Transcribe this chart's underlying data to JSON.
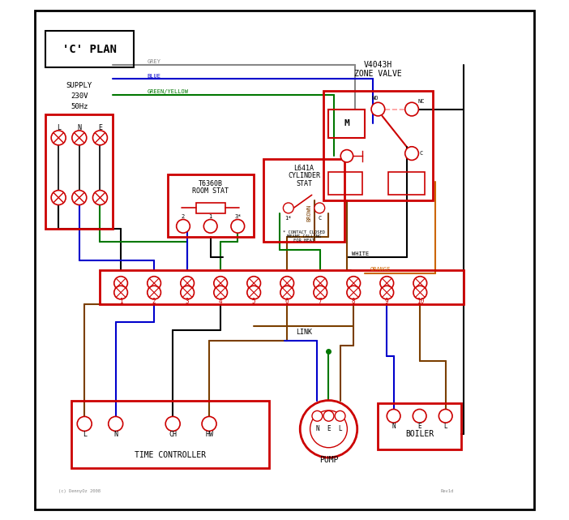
{
  "title": "'C' PLAN",
  "bg_color": "#ffffff",
  "border_color": "#000000",
  "red": "#cc0000",
  "blue": "#0000cc",
  "green": "#007700",
  "brown": "#7B3F00",
  "grey": "#888888",
  "orange": "#cc6600",
  "black": "#000000",
  "pink": "#ff9999",
  "time_ctrl_text": "TIME CONTROLLER",
  "pump_text": "PUMP",
  "boiler_text": "BOILER",
  "link_text": "LINK",
  "copyright": "(c) DennyOz 2008",
  "revision": "Rev1d"
}
